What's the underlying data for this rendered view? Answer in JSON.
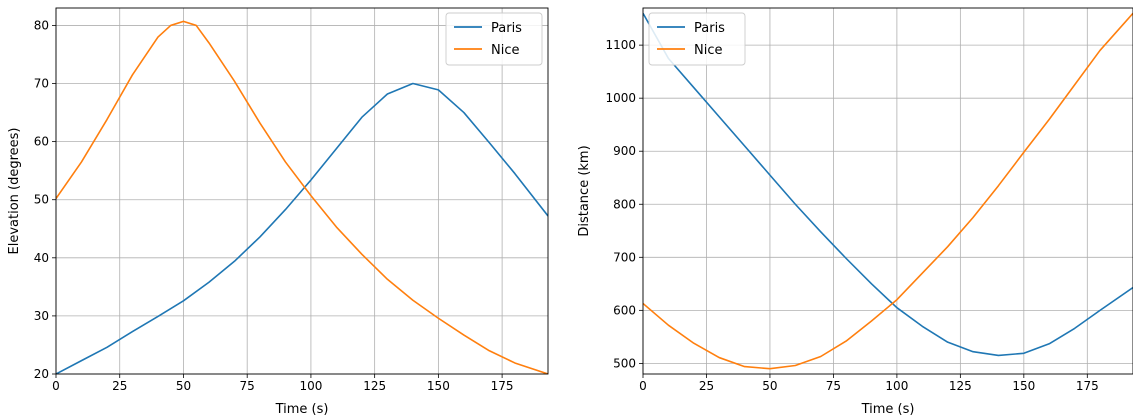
{
  "chart_data": [
    {
      "type": "line",
      "title": "",
      "xlabel": "Time (s)",
      "ylabel": "Elevation (degrees)",
      "xlim": [
        0,
        193
      ],
      "ylim": [
        20,
        83
      ],
      "xticks": [
        0,
        25,
        50,
        75,
        100,
        125,
        150,
        175
      ],
      "yticks": [
        20,
        30,
        40,
        50,
        60,
        70,
        80
      ],
      "grid": true,
      "legend": "top-right",
      "series": [
        {
          "name": "Paris",
          "color": "#1f77b4",
          "x": [
            0,
            10,
            20,
            30,
            40,
            50,
            60,
            70,
            80,
            90,
            100,
            110,
            120,
            130,
            140,
            150,
            160,
            170,
            180,
            193
          ],
          "y": [
            20.0,
            22.3,
            24.6,
            27.3,
            29.9,
            32.6,
            35.8,
            39.4,
            43.6,
            48.3,
            53.4,
            58.8,
            64.2,
            68.2,
            70.0,
            68.9,
            65.0,
            59.8,
            54.5,
            47.2
          ]
        },
        {
          "name": "Nice",
          "color": "#ff7f0e",
          "x": [
            0,
            10,
            20,
            30,
            40,
            45,
            50,
            55,
            60,
            70,
            80,
            90,
            100,
            110,
            120,
            130,
            140,
            150,
            160,
            170,
            180,
            193
          ],
          "y": [
            50.2,
            56.5,
            63.8,
            71.5,
            78.0,
            80.0,
            80.7,
            80.0,
            77.0,
            70.4,
            63.2,
            56.5,
            50.7,
            45.3,
            40.6,
            36.3,
            32.7,
            29.6,
            26.7,
            24.0,
            21.9,
            20.0
          ]
        }
      ]
    },
    {
      "type": "line",
      "title": "",
      "xlabel": "Time (s)",
      "ylabel": "Distance (km)",
      "xlim": [
        0,
        193
      ],
      "ylim": [
        480,
        1170
      ],
      "xticks": [
        0,
        25,
        50,
        75,
        100,
        125,
        150,
        175
      ],
      "yticks": [
        500,
        600,
        700,
        800,
        900,
        1000,
        1100
      ],
      "grid": true,
      "legend": "top-left",
      "series": [
        {
          "name": "Paris",
          "color": "#1f77b4",
          "x": [
            0,
            10,
            20,
            30,
            40,
            50,
            60,
            70,
            80,
            90,
            100,
            110,
            120,
            130,
            140,
            150,
            160,
            170,
            180,
            193
          ],
          "y": [
            1160,
            1075,
            1020,
            965,
            910,
            855,
            800,
            748,
            698,
            650,
            605,
            570,
            540,
            522,
            515,
            519,
            537,
            566,
            600,
            643
          ]
        },
        {
          "name": "Nice",
          "color": "#ff7f0e",
          "x": [
            0,
            10,
            20,
            30,
            40,
            50,
            60,
            70,
            80,
            90,
            100,
            110,
            120,
            130,
            140,
            150,
            160,
            170,
            180,
            193
          ],
          "y": [
            613,
            572,
            538,
            511,
            494,
            490,
            496,
            513,
            542,
            580,
            620,
            670,
            720,
            775,
            835,
            898,
            960,
            1025,
            1090,
            1160
          ]
        }
      ]
    }
  ]
}
